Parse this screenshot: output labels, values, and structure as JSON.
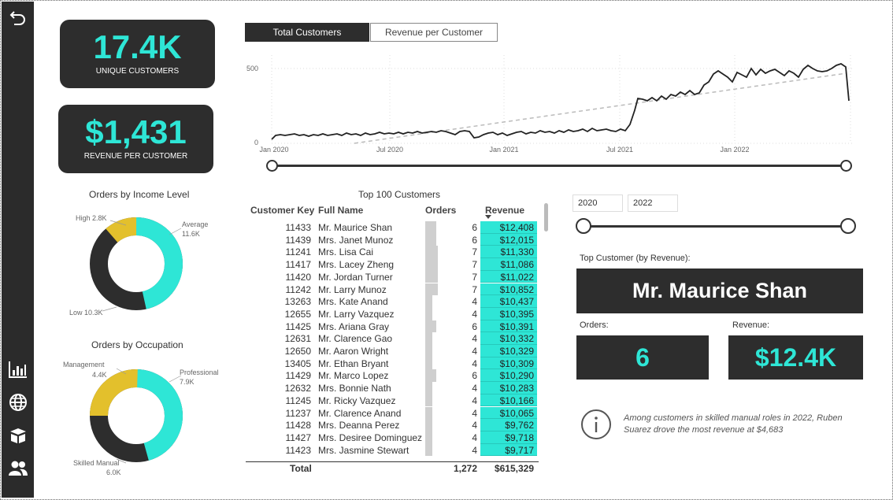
{
  "kpis": {
    "unique_customers_value": "17.4K",
    "unique_customers_label": "UNIQUE CUSTOMERS",
    "revenue_per_customer_value": "$1,431",
    "revenue_per_customer_label": "REVENUE PER CUSTOMER"
  },
  "tabs": {
    "total_customers": "Total Customers",
    "revenue_per_customer": "Revenue per Customer",
    "active": "total_customers"
  },
  "trend_chart": {
    "y_ticks": [
      "500",
      "0"
    ],
    "x_ticks": [
      "Jan 2020",
      "Jul 2020",
      "Jan 2021",
      "Jul 2021",
      "Jan 2022"
    ]
  },
  "income_donut": {
    "title": "Orders by Income Level",
    "labels": {
      "high": "High 2.8K",
      "average_name": "Average",
      "average_value": "11.6K",
      "low": "Low 10.3K"
    }
  },
  "occupation_donut": {
    "title": "Orders by Occupation",
    "labels": {
      "management_name": "Management",
      "management_value": "4.4K",
      "professional_name": "Professional",
      "professional_value": "7.9K",
      "skilled_name": "Skilled Manual",
      "skilled_value": "6.0K"
    }
  },
  "top_table": {
    "title": "Top 100 Customers",
    "headers": {
      "key": "Customer Key",
      "name": "Full Name",
      "orders": "Orders",
      "revenue": "Revenue"
    },
    "rows": [
      {
        "key": "11433",
        "name": "Mr. Maurice Shan",
        "orders": "6",
        "revenue": "$12,408"
      },
      {
        "key": "11439",
        "name": "Mrs. Janet Munoz",
        "orders": "6",
        "revenue": "$12,015"
      },
      {
        "key": "11241",
        "name": "Mrs. Lisa Cai",
        "orders": "7",
        "revenue": "$11,330"
      },
      {
        "key": "11417",
        "name": "Mrs. Lacey Zheng",
        "orders": "7",
        "revenue": "$11,086"
      },
      {
        "key": "11420",
        "name": "Mr. Jordan Turner",
        "orders": "7",
        "revenue": "$11,022"
      },
      {
        "key": "11242",
        "name": "Mr. Larry Munoz",
        "orders": "7",
        "revenue": "$10,852"
      },
      {
        "key": "13263",
        "name": "Mrs. Kate Anand",
        "orders": "4",
        "revenue": "$10,437"
      },
      {
        "key": "12655",
        "name": "Mr. Larry Vazquez",
        "orders": "4",
        "revenue": "$10,395"
      },
      {
        "key": "11425",
        "name": "Mrs. Ariana Gray",
        "orders": "6",
        "revenue": "$10,391"
      },
      {
        "key": "12631",
        "name": "Mr. Clarence Gao",
        "orders": "4",
        "revenue": "$10,332"
      },
      {
        "key": "12650",
        "name": "Mr. Aaron Wright",
        "orders": "4",
        "revenue": "$10,329"
      },
      {
        "key": "13405",
        "name": "Mr. Ethan Bryant",
        "orders": "4",
        "revenue": "$10,309"
      },
      {
        "key": "11429",
        "name": "Mr. Marco Lopez",
        "orders": "6",
        "revenue": "$10,290"
      },
      {
        "key": "12632",
        "name": "Mrs. Bonnie Nath",
        "orders": "4",
        "revenue": "$10,283"
      },
      {
        "key": "11245",
        "name": "Mr. Ricky Vazquez",
        "orders": "4",
        "revenue": "$10,166"
      },
      {
        "key": "11237",
        "name": "Mr. Clarence Anand",
        "orders": "4",
        "revenue": "$10,065"
      },
      {
        "key": "11428",
        "name": "Mrs. Deanna Perez",
        "orders": "4",
        "revenue": "$9,762"
      },
      {
        "key": "11427",
        "name": "Mrs. Desiree Dominguez",
        "orders": "4",
        "revenue": "$9,718"
      },
      {
        "key": "11423",
        "name": "Mrs. Jasmine Stewart",
        "orders": "4",
        "revenue": "$9,717"
      }
    ],
    "total": {
      "label": "Total",
      "orders": "1,272",
      "revenue": "$615,329"
    }
  },
  "date_filter": {
    "start": "2020",
    "end": "2022"
  },
  "top_customer": {
    "label": "Top Customer (by Revenue):",
    "name": "Mr. Maurice Shan",
    "orders_label": "Orders:",
    "orders_value": "6",
    "revenue_label": "Revenue:",
    "revenue_value": "$12.4K"
  },
  "insight": "Among customers in skilled manual roles in 2022, Ruben Suarez drove the most revenue at $4,683",
  "colors": {
    "accent": "#2ee6d6",
    "dark": "#2d2d2d",
    "yellow": "#e3c02c"
  }
}
